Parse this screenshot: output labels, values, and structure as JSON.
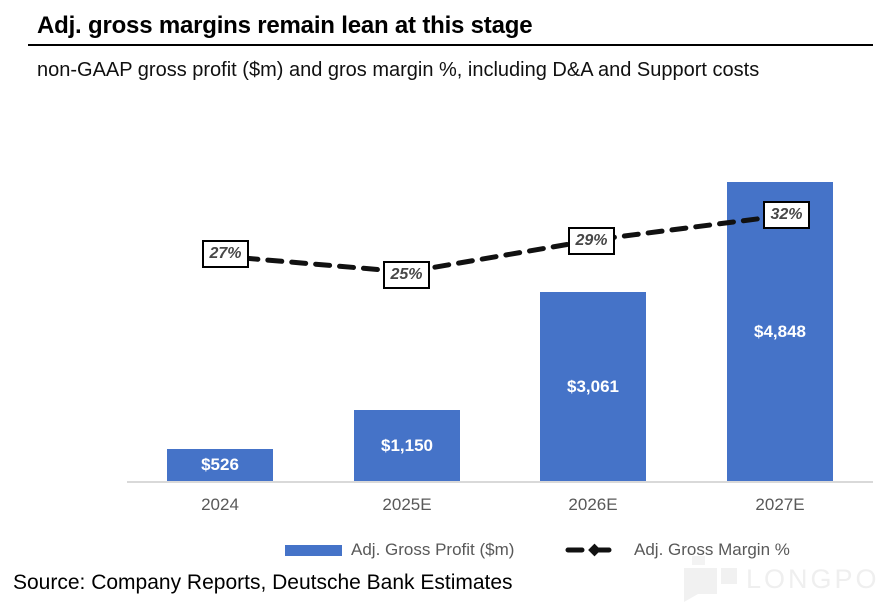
{
  "header": {
    "title": "Adj. gross margins remain lean at this stage",
    "subtitle": "non-GAAP gross profit ($m) and gros margin %, including D&A and Support costs"
  },
  "chart_data": {
    "type": "bar",
    "categories": [
      "2024",
      "2025E",
      "2026E",
      "2027E"
    ],
    "series": [
      {
        "name": "Adj. Gross Profit ($m)",
        "type": "bar",
        "values": [
          526,
          1150,
          3061,
          4848
        ],
        "labels": [
          "$526",
          "$1,150",
          "$3,061",
          "$4,848"
        ],
        "color": "#4573C8"
      },
      {
        "name": "Adj. Gross Margin %",
        "type": "line",
        "style": "dashed",
        "values": [
          27,
          25,
          29,
          32
        ],
        "labels": [
          "27%",
          "25%",
          "29%",
          "32%"
        ],
        "color": "#111111"
      }
    ],
    "ylim": [
      0,
      4848
    ],
    "grid": false,
    "legend_position": "bottom",
    "bar_value_label_color": "#ffffff",
    "axis_label_color": "#595959"
  },
  "legend": {
    "items": [
      {
        "label": "Adj. Gross Profit ($m)",
        "swatch": "bar-swatch",
        "color": "#4573C8"
      },
      {
        "label": "Adj. Gross Margin %",
        "swatch": "dashed-line-diamond",
        "color": "#111111"
      }
    ]
  },
  "footer": {
    "source": "Source: Company Reports, Deutsche Bank Estimates"
  },
  "watermark": {
    "text": "LONGPORT"
  }
}
